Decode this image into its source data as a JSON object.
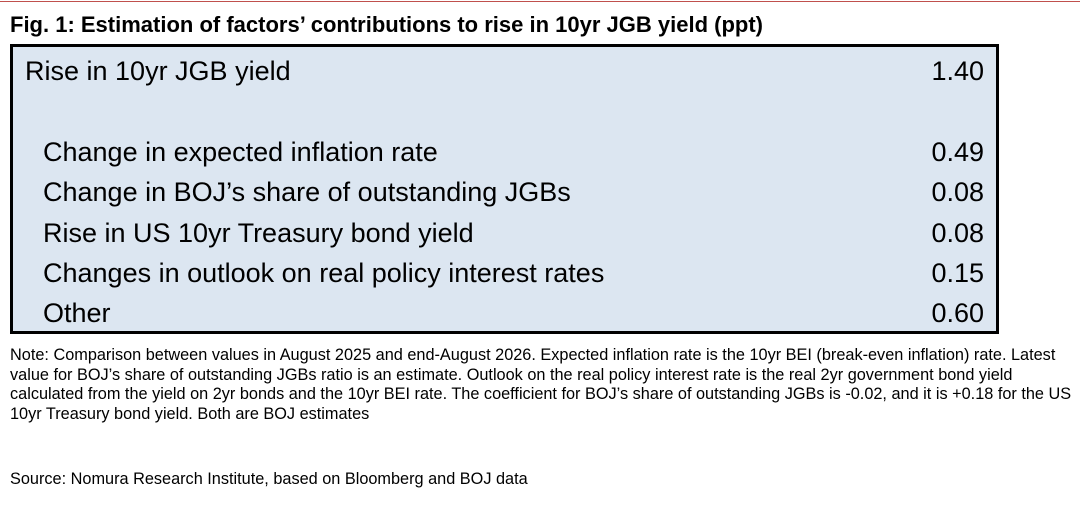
{
  "header": {
    "title": "Fig. 1: Estimation of factors’ contributions to rise in 10yr JGB yield (ppt)"
  },
  "table": {
    "total": {
      "label": "Rise in 10yr JGB yield",
      "value": "1.40"
    },
    "rows": [
      {
        "label": "Change in expected inflation rate",
        "value": "0.49"
      },
      {
        "label": "Change in BOJ’s share of outstanding JGBs",
        "value": "0.08"
      },
      {
        "label": "Rise in US 10yr Treasury bond yield",
        "value": "0.08"
      },
      {
        "label": "Changes in outlook on real policy interest rates",
        "value": "0.15"
      },
      {
        "label": "Other",
        "value": "0.60"
      }
    ]
  },
  "footer": {
    "note": "Note: Comparison between values in August 2025 and end-August 2026. Expected inflation rate is the 10yr BEI (break-even inflation) rate. Latest value for BOJ’s share of outstanding JGBs ratio is an estimate. Outlook on the real policy interest rate is the real 2yr government bond yield calculated from the yield on 2yr bonds and the 10yr BEI rate. The coefficient for BOJ’s share of outstanding JGBs is -0.02, and it is +0.18 for the US 10yr Treasury bond yield. Both are BOJ estimates",
    "source": "Source: Nomura Research Institute, based on Bloomberg and BOJ data"
  }
}
